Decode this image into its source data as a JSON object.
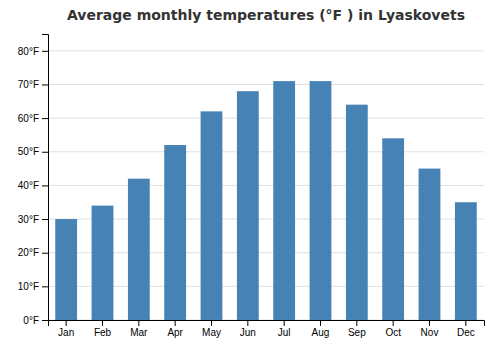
{
  "chart_data": {
    "type": "bar",
    "title": "Average monthly temperatures (°F ) in Lyaskovets",
    "categories": [
      "Jan",
      "Feb",
      "Mar",
      "Apr",
      "May",
      "Jun",
      "Jul",
      "Aug",
      "Sep",
      "Oct",
      "Nov",
      "Dec"
    ],
    "values": [
      30,
      34,
      42,
      52,
      62,
      68,
      71,
      71,
      64,
      54,
      45,
      35
    ],
    "ylim": [
      0,
      85
    ],
    "yticks": [
      {
        "value": 0,
        "label": "0°F"
      },
      {
        "value": 10,
        "label": "10°F"
      },
      {
        "value": 20,
        "label": "20°F"
      },
      {
        "value": 30,
        "label": "30°F"
      },
      {
        "value": 40,
        "label": "40°F"
      },
      {
        "value": 50,
        "label": "50°F"
      },
      {
        "value": 60,
        "label": "60°F"
      },
      {
        "value": 70,
        "label": "70°F"
      },
      {
        "value": 80,
        "label": "80°F"
      }
    ],
    "grid": true
  }
}
